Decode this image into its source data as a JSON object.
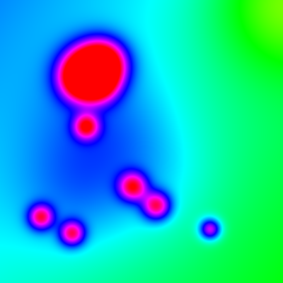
{
  "chart_data": {
    "type": "heatmap",
    "title": "",
    "xlabel": "",
    "ylabel": "",
    "colormap": [
      "#ff0000",
      "#ff00ff",
      "#0000ff",
      "#00ffff",
      "#00ff00",
      "#ffff00"
    ],
    "xlim": [
      0,
      1
    ],
    "ylim": [
      0,
      1
    ],
    "grid": false,
    "legend": "none",
    "background_trend": {
      "base": 0.63,
      "gradient_x": 0.16,
      "gradient_y": -0.12,
      "bump_top_right": 0.22
    },
    "sources": [
      {
        "x": 0.31,
        "y": 0.745,
        "strength": 0.78,
        "spread": 0.06
      },
      {
        "x": 0.365,
        "y": 0.775,
        "strength": 0.7,
        "spread": 0.055
      },
      {
        "x": 0.283,
        "y": 0.72,
        "strength": 0.42,
        "spread": 0.05
      },
      {
        "x": 0.35,
        "y": 0.705,
        "strength": 0.35,
        "spread": 0.045
      },
      {
        "x": 0.305,
        "y": 0.553,
        "strength": 0.52,
        "spread": 0.03
      },
      {
        "x": 0.47,
        "y": 0.34,
        "strength": 0.52,
        "spread": 0.034
      },
      {
        "x": 0.553,
        "y": 0.273,
        "strength": 0.52,
        "spread": 0.034
      },
      {
        "x": 0.145,
        "y": 0.233,
        "strength": 0.5,
        "spread": 0.03
      },
      {
        "x": 0.255,
        "y": 0.175,
        "strength": 0.5,
        "spread": 0.03
      },
      {
        "x": 0.743,
        "y": 0.19,
        "strength": 0.46,
        "spread": 0.026
      },
      {
        "x": 0.36,
        "y": 0.55,
        "strength": 0.13,
        "spread": 0.17
      },
      {
        "x": 0.25,
        "y": 0.3,
        "strength": 0.1,
        "spread": 0.15
      },
      {
        "x": 0.55,
        "y": 0.35,
        "strength": 0.08,
        "spread": 0.16
      }
    ]
  }
}
